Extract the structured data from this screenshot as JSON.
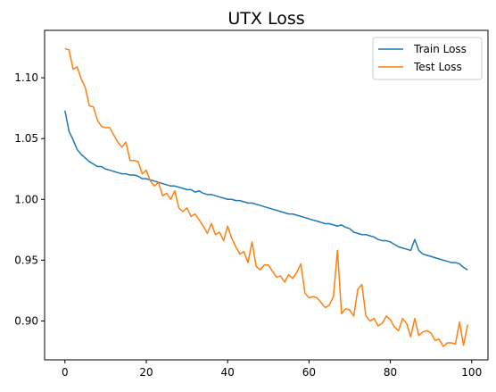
{
  "chart_data": {
    "type": "line",
    "title": "UTX Loss",
    "xlabel": "",
    "ylabel": "",
    "xlim": [
      -5,
      104
    ],
    "ylim": [
      0.868,
      1.139
    ],
    "xticks": [
      0,
      20,
      40,
      60,
      80,
      100
    ],
    "yticks": [
      0.9,
      0.95,
      1.0,
      1.05,
      1.1
    ],
    "xtick_labels": [
      "0",
      "20",
      "40",
      "60",
      "80",
      "100"
    ],
    "ytick_labels": [
      "0.90",
      "0.95",
      "1.00",
      "1.05",
      "1.10"
    ],
    "grid": false,
    "legend_position": "top-right",
    "series": [
      {
        "name": "Train Loss",
        "color": "#1f77b4",
        "values": [
          1.073,
          1.056,
          1.049,
          1.041,
          1.037,
          1.034,
          1.031,
          1.029,
          1.027,
          1.027,
          1.025,
          1.024,
          1.023,
          1.022,
          1.021,
          1.021,
          1.02,
          1.02,
          1.019,
          1.017,
          1.017,
          1.016,
          1.015,
          1.014,
          1.013,
          1.012,
          1.011,
          1.011,
          1.01,
          1.009,
          1.008,
          1.008,
          1.006,
          1.007,
          1.005,
          1.004,
          1.004,
          1.003,
          1.002,
          1.001,
          1.0,
          1.0,
          0.999,
          0.999,
          0.998,
          0.997,
          0.997,
          0.996,
          0.995,
          0.994,
          0.993,
          0.992,
          0.991,
          0.99,
          0.989,
          0.988,
          0.988,
          0.987,
          0.986,
          0.985,
          0.984,
          0.983,
          0.982,
          0.981,
          0.98,
          0.98,
          0.979,
          0.978,
          0.979,
          0.977,
          0.976,
          0.973,
          0.972,
          0.971,
          0.971,
          0.97,
          0.969,
          0.967,
          0.966,
          0.966,
          0.965,
          0.963,
          0.961,
          0.96,
          0.959,
          0.958,
          0.967,
          0.958,
          0.955,
          0.954,
          0.953,
          0.952,
          0.951,
          0.95,
          0.949,
          0.948,
          0.948,
          0.947,
          0.944,
          0.942
        ]
      },
      {
        "name": "Test Loss",
        "color": "#ff7f0e",
        "values": [
          1.124,
          1.123,
          1.107,
          1.109,
          1.099,
          1.092,
          1.077,
          1.076,
          1.065,
          1.06,
          1.059,
          1.059,
          1.053,
          1.047,
          1.043,
          1.047,
          1.032,
          1.032,
          1.031,
          1.021,
          1.024,
          1.015,
          1.011,
          1.014,
          1.003,
          1.005,
          1.0,
          1.007,
          0.993,
          0.99,
          0.993,
          0.986,
          0.988,
          0.983,
          0.978,
          0.972,
          0.98,
          0.971,
          0.973,
          0.966,
          0.978,
          0.968,
          0.961,
          0.955,
          0.957,
          0.948,
          0.965,
          0.945,
          0.942,
          0.946,
          0.946,
          0.941,
          0.936,
          0.937,
          0.932,
          0.938,
          0.935,
          0.94,
          0.947,
          0.923,
          0.919,
          0.92,
          0.919,
          0.915,
          0.911,
          0.913,
          0.92,
          0.958,
          0.906,
          0.91,
          0.909,
          0.904,
          0.926,
          0.93,
          0.904,
          0.9,
          0.902,
          0.896,
          0.898,
          0.904,
          0.901,
          0.895,
          0.892,
          0.902,
          0.898,
          0.887,
          0.902,
          0.888,
          0.891,
          0.892,
          0.89,
          0.884,
          0.885,
          0.879,
          0.882,
          0.882,
          0.881,
          0.899,
          0.88,
          0.897
        ]
      }
    ]
  }
}
